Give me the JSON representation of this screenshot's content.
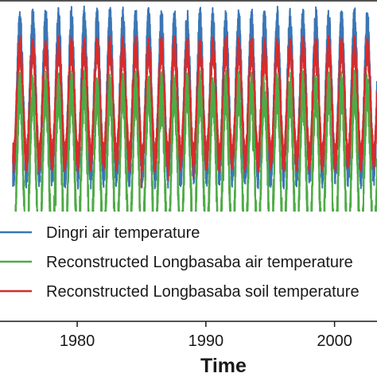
{
  "chart_data": {
    "type": "line",
    "title": "",
    "xlabel": "Time",
    "ylabel": "",
    "xlim": [
      1974.0,
      2003.3
    ],
    "ylim": [
      -36,
      22
    ],
    "x_ticks": [
      "1980",
      "1990",
      "2000"
    ],
    "grid": false,
    "legend_position": "lower-left",
    "series": [
      {
        "name": "Dingri air temperature",
        "color": "#3a76b5",
        "start_year": 1975.0,
        "end_year": 2003.3,
        "seasonal_max": 17.5,
        "seasonal_min": -8.5,
        "line_width": 2.0
      },
      {
        "name": "Reconstructed Longbasaba air temperature",
        "color": "#4eab46",
        "start_year": 1975.0,
        "end_year": 2003.3,
        "seasonal_max": 5.5,
        "seasonal_min": -23.0,
        "line_width": 2.0
      },
      {
        "name": "Reconstructed Longbasaba soil temperature",
        "color": "#d62c2c",
        "start_year": 1975.0,
        "end_year": 2003.3,
        "seasonal_max": 13.0,
        "seasonal_min": -6.5,
        "line_width": 2.0
      }
    ]
  }
}
